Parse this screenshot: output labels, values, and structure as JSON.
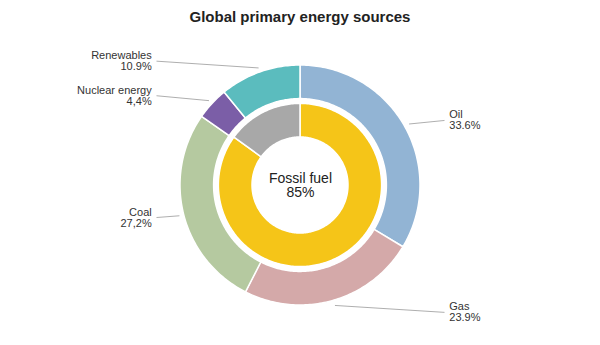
{
  "chart_data": {
    "type": "pie",
    "title": "Global primary energy sources",
    "series": [
      {
        "categories": [
          "Oil",
          "Gas",
          "Coal",
          "Nuclear energy",
          "Renewables"
        ],
        "values": [
          33.6,
          23.9,
          27.2,
          4.4,
          10.9
        ],
        "value_labels": [
          "33.6%",
          "23.9%",
          "27,2%",
          "4,4%",
          "10.9%"
        ],
        "colors": [
          "#92b4d4",
          "#d4a9a9",
          "#b5c9a0",
          "#7b5ea7",
          "#5bbcbe"
        ]
      },
      {
        "values": [
          85,
          15
        ],
        "colors": [
          "#f5c518",
          "#a8a8a8"
        ]
      }
    ],
    "annotations": [
      "Fossil fuel\n85%"
    ],
    "data_labels": true
  }
}
